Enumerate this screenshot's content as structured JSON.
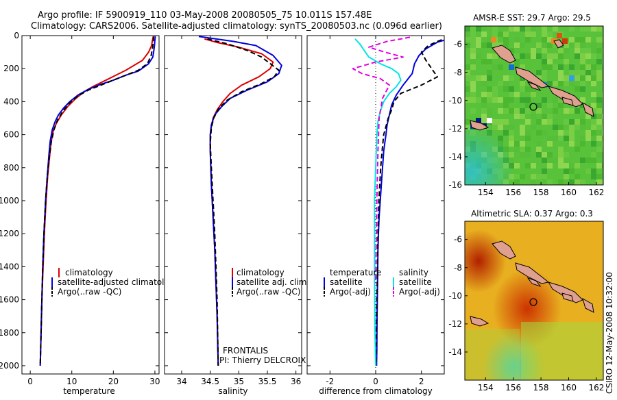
{
  "header": {
    "line1": "Argo profile: IF 5900919_110 03-May-2008 20080505_75 10.011S 157.48E",
    "line2": "Climatology: CARS2006. Satellite-adjusted climatology: synTS_20080503.nc (0.096d earlier)"
  },
  "side_text": "CSIRO 12-May-2008 10:32:00",
  "colors": {
    "climatology": "#dd0000",
    "satellite": "#0000dd",
    "argo": "#000000",
    "sat_diff": "#00e5e5",
    "argo_diff": "#e000e0"
  },
  "chart_data": [
    {
      "id": "temperature",
      "type": "line",
      "xlabel": "temperature",
      "xlim": [
        -2,
        31
      ],
      "ylim": [
        2050,
        0
      ],
      "xticks": [
        0,
        10,
        20,
        30
      ],
      "yticks": [
        0,
        200,
        400,
        600,
        800,
        1000,
        1200,
        1400,
        1600,
        1800,
        2000
      ],
      "legend": [
        "climatology",
        "satellite-adjusted climatolog",
        "Argo(..raw -QC)"
      ],
      "series": [
        {
          "name": "climatology",
          "color": "#dd0000",
          "dash": "",
          "x": [
            29.6,
            29.4,
            29.2,
            28.5,
            27,
            25,
            23,
            21,
            19,
            17,
            15,
            13,
            11,
            9,
            7.5,
            6.3,
            5.5,
            5,
            4.6,
            4.2,
            3.8,
            3.4,
            3.1,
            2.8,
            2.6,
            2.5,
            2.4
          ],
          "y": [
            5,
            30,
            60,
            100,
            150,
            180,
            210,
            235,
            260,
            285,
            310,
            340,
            380,
            430,
            480,
            530,
            580,
            650,
            750,
            850,
            1000,
            1200,
            1400,
            1600,
            1800,
            1900,
            2000
          ]
        },
        {
          "name": "satellite-adjusted climatolog",
          "color": "#0000dd",
          "dash": "",
          "x": [
            30.1,
            30,
            29.9,
            29.7,
            29.5,
            28.5,
            26,
            23,
            20,
            17,
            14,
            11.5,
            9.5,
            8,
            6.8,
            6,
            5.3,
            4.8,
            4.5,
            4.1,
            3.7,
            3.3,
            3.0,
            2.8,
            2.6,
            2.5,
            2.4
          ],
          "y": [
            5,
            30,
            60,
            100,
            130,
            170,
            215,
            240,
            270,
            295,
            325,
            360,
            400,
            440,
            480,
            520,
            570,
            640,
            720,
            850,
            1000,
            1200,
            1400,
            1600,
            1800,
            1900,
            2000
          ]
        },
        {
          "name": "Argo(..raw -QC)",
          "color": "#000000",
          "dash": "7,4",
          "x": [
            29.7,
            29.6,
            29.4,
            29.1,
            28.2,
            26,
            23,
            20,
            17,
            14,
            11.5,
            9.4,
            7.8,
            6.6,
            5.7,
            5.1,
            4.6,
            4.1,
            3.7,
            3.3,
            3.0,
            2.8,
            2.6,
            2.5,
            2.4
          ],
          "y": [
            5,
            40,
            80,
            120,
            170,
            210,
            240,
            270,
            300,
            330,
            365,
            410,
            460,
            510,
            570,
            640,
            730,
            850,
            1000,
            1200,
            1400,
            1600,
            1800,
            1900,
            2000
          ]
        }
      ]
    },
    {
      "id": "salinity",
      "type": "line",
      "xlabel": "salinity",
      "xlim": [
        33.7,
        36.1
      ],
      "ylim": [
        2050,
        0
      ],
      "xticks": [
        34,
        34.5,
        35,
        35.5,
        36
      ],
      "legend": [
        "climatology",
        "satellite adj. clim.",
        "Argo(..raw -QC)"
      ],
      "annotations": [
        "FRONTALIS",
        "PI: Thierry DELCROIX"
      ],
      "series": [
        {
          "name": "climatology",
          "color": "#dd0000",
          "dash": "",
          "x": [
            34.4,
            34.6,
            35.0,
            35.4,
            35.6,
            35.55,
            35.35,
            35.05,
            34.85,
            34.72,
            34.62,
            34.55,
            34.52,
            34.5,
            34.5,
            34.52,
            34.55,
            34.58,
            34.6,
            34.62,
            34.63,
            34.64
          ],
          "y": [
            20,
            40,
            70,
            110,
            160,
            200,
            250,
            300,
            350,
            400,
            450,
            500,
            550,
            600,
            700,
            900,
            1100,
            1300,
            1500,
            1700,
            1850,
            2000
          ]
        },
        {
          "name": "satellite adj. clim.",
          "color": "#0000dd",
          "dash": "",
          "x": [
            34.3,
            34.5,
            34.9,
            35.3,
            35.6,
            35.75,
            35.7,
            35.5,
            35.15,
            34.85,
            34.7,
            34.58,
            34.52,
            34.5,
            34.5,
            34.52,
            34.55,
            34.58,
            34.6,
            34.62,
            34.63,
            34.64
          ],
          "y": [
            5,
            15,
            35,
            60,
            120,
            180,
            230,
            280,
            330,
            380,
            430,
            480,
            540,
            600,
            700,
            900,
            1100,
            1300,
            1500,
            1700,
            1850,
            2000
          ]
        },
        {
          "name": "Argo(..raw -QC)",
          "color": "#000000",
          "dash": "7,4",
          "x": [
            34.45,
            34.8,
            35.15,
            35.4,
            35.55,
            35.7,
            35.62,
            35.4,
            35.05,
            34.8,
            34.65,
            34.56,
            34.52,
            34.5,
            34.52,
            34.55,
            34.58,
            34.6,
            34.62,
            34.64
          ],
          "y": [
            20,
            50,
            90,
            130,
            170,
            210,
            250,
            290,
            340,
            390,
            440,
            500,
            560,
            650,
            800,
            1000,
            1200,
            1400,
            1600,
            2000
          ]
        }
      ]
    },
    {
      "id": "difference",
      "type": "line",
      "xlabel": "difference from climatology",
      "xlim": [
        -3,
        3
      ],
      "ylim": [
        2050,
        0
      ],
      "xticks": [
        -2,
        0,
        2
      ],
      "legend_groups": {
        "temperature": [
          "satellite",
          "Argo(-adj)"
        ],
        "salinity": [
          "satellite",
          "Argo(-adj)"
        ]
      },
      "series": [
        {
          "name": "temperature satellite",
          "color": "#0000dd",
          "dash": "",
          "x": [
            3.2,
            2.7,
            2.2,
            1.9,
            1.7,
            1.6,
            1.2,
            0.9,
            0.7,
            0.6,
            0.5,
            0.45,
            0.4,
            0.35,
            0.3,
            0.25,
            0.2,
            0.15,
            0.12,
            0.1,
            0.08,
            0.06,
            0.05,
            0.04
          ],
          "y": [
            20,
            40,
            80,
            120,
            170,
            230,
            300,
            360,
            420,
            480,
            540,
            600,
            650,
            700,
            800,
            900,
            1000,
            1100,
            1200,
            1300,
            1500,
            1700,
            1900,
            2000
          ]
        },
        {
          "name": "temperature Argo(-adj)",
          "color": "#000000",
          "dash": "7,4",
          "x": [
            3.2,
            2.8,
            2.3,
            2.0,
            2.2,
            2.7,
            2.0,
            1.1,
            0.8,
            0.7,
            0.55,
            0.45,
            0.35,
            0.28,
            0.22,
            0.18,
            0.14,
            0.1,
            0.08,
            0.05,
            0.03,
            0.02
          ],
          "y": [
            10,
            30,
            60,
            100,
            150,
            250,
            300,
            350,
            400,
            450,
            500,
            550,
            600,
            700,
            800,
            900,
            1000,
            1200,
            1400,
            1600,
            1800,
            2000
          ]
        },
        {
          "name": "salinity satellite",
          "color": "#00e5e5",
          "dash": "",
          "x": [
            -0.9,
            -0.7,
            -0.5,
            -0.3,
            0.2,
            0.7,
            1.0,
            1.1,
            0.9,
            0.6,
            0.35,
            0.2,
            0.1,
            0.05,
            0.0,
            -0.05,
            -0.05,
            -0.05,
            -0.03,
            0.0
          ],
          "y": [
            20,
            50,
            90,
            130,
            170,
            200,
            230,
            270,
            310,
            350,
            400,
            460,
            520,
            600,
            800,
            1000,
            1200,
            1500,
            1800,
            2000
          ]
        },
        {
          "name": "salinity Argo(-adj)",
          "color": "#e000e0",
          "dash": "7,4",
          "x": [
            1.5,
            0.5,
            -0.3,
            0.4,
            1.2,
            0.0,
            -1.0,
            -0.6,
            0.2,
            0.6,
            0.3,
            0.15,
            0.1,
            0.05,
            0.0
          ],
          "y": [
            10,
            35,
            70,
            100,
            130,
            160,
            200,
            230,
            260,
            300,
            380,
            500,
            700,
            1000,
            1500
          ]
        }
      ]
    }
  ],
  "maps": {
    "sst": {
      "title": "AMSR-E SST: 29.7 Argo: 29.5",
      "xlim": [
        152.5,
        162.5
      ],
      "ylim": [
        -16,
        -4.7
      ],
      "xticks": [
        154,
        156,
        158,
        160,
        162
      ],
      "yticks": [
        -6,
        -8,
        -10,
        -12,
        -14,
        -16
      ],
      "marker": [
        157.48,
        -10.011
      ]
    },
    "sla": {
      "title": "Altimetric SLA: 0.37 Argo: 0.3",
      "xlim": [
        152.5,
        162.5
      ],
      "ylim": [
        -16,
        -4.7
      ],
      "xticks": [
        154,
        156,
        158,
        160,
        162
      ],
      "yticks": [
        -6,
        -8,
        -10,
        -12,
        -14
      ],
      "marker": [
        157.48,
        -10.011
      ]
    }
  }
}
